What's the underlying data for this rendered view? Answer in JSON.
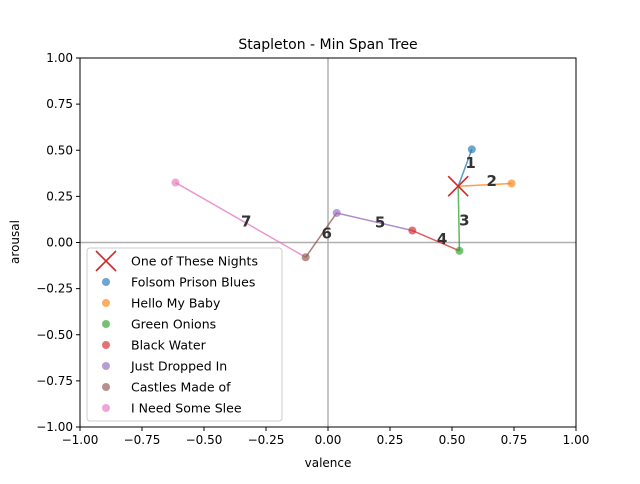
{
  "chart_data": {
    "type": "scatter",
    "title": "Stapleton - Min Span Tree",
    "xlabel": "valence",
    "ylabel": "arousal",
    "xlim": [
      -1.0,
      1.0
    ],
    "ylim": [
      -1.0,
      1.0
    ],
    "xticks": [
      "−1.00",
      "−0.75",
      "−0.50",
      "−0.25",
      "0.00",
      "0.25",
      "0.50",
      "0.75",
      "1.00"
    ],
    "yticks": [
      "−1.00",
      "−0.75",
      "−0.50",
      "−0.25",
      "0.00",
      "0.25",
      "0.50",
      "0.75",
      "1.00"
    ],
    "grid": false,
    "legend_position": "lower-left",
    "center": {
      "name": "One of These Nights",
      "x": 0.525,
      "y": 0.305,
      "marker": "x",
      "color": "#d62728"
    },
    "series": [
      {
        "name": "Folsom Prison Blues",
        "x": 0.58,
        "y": 0.505,
        "color": "#1f77b4"
      },
      {
        "name": "Hello My Baby",
        "x": 0.74,
        "y": 0.32,
        "color": "#ff7f0e"
      },
      {
        "name": "Green Onions",
        "x": 0.53,
        "y": -0.045,
        "color": "#2ca02c"
      },
      {
        "name": "Black Water",
        "x": 0.34,
        "y": 0.065,
        "color": "#d62728"
      },
      {
        "name": "Just Dropped In",
        "x": 0.035,
        "y": 0.16,
        "color": "#9467bd"
      },
      {
        "name": "Castles Made of",
        "x": -0.09,
        "y": -0.08,
        "color": "#8c564b"
      },
      {
        "name": "I Need Some Slee",
        "x": -0.615,
        "y": 0.325,
        "color": "#e377c2"
      }
    ],
    "edges": [
      {
        "label": "1",
        "from": [
          0.525,
          0.305
        ],
        "to": [
          0.58,
          0.505
        ],
        "color": "#1f77b4",
        "label_at": [
          0.575,
          0.435
        ]
      },
      {
        "label": "2",
        "from": [
          0.525,
          0.305
        ],
        "to": [
          0.74,
          0.32
        ],
        "color": "#ff7f0e",
        "label_at": [
          0.66,
          0.34
        ]
      },
      {
        "label": "3",
        "from": [
          0.525,
          0.305
        ],
        "to": [
          0.53,
          -0.045
        ],
        "color": "#2ca02c",
        "label_at": [
          0.55,
          0.125
        ]
      },
      {
        "label": "4",
        "from": [
          0.53,
          -0.045
        ],
        "to": [
          0.34,
          0.065
        ],
        "color": "#d62728",
        "label_at": [
          0.46,
          0.025
        ]
      },
      {
        "label": "5",
        "from": [
          0.34,
          0.065
        ],
        "to": [
          0.035,
          0.16
        ],
        "color": "#9467bd",
        "label_at": [
          0.21,
          0.115
        ]
      },
      {
        "label": "6",
        "from": [
          0.035,
          0.16
        ],
        "to": [
          -0.09,
          -0.08
        ],
        "color": "#8c564b",
        "label_at": [
          -0.005,
          0.055
        ]
      },
      {
        "label": "7",
        "from": [
          -0.09,
          -0.08
        ],
        "to": [
          -0.615,
          0.325
        ],
        "color": "#e377c2",
        "label_at": [
          -0.33,
          0.12
        ]
      }
    ]
  }
}
